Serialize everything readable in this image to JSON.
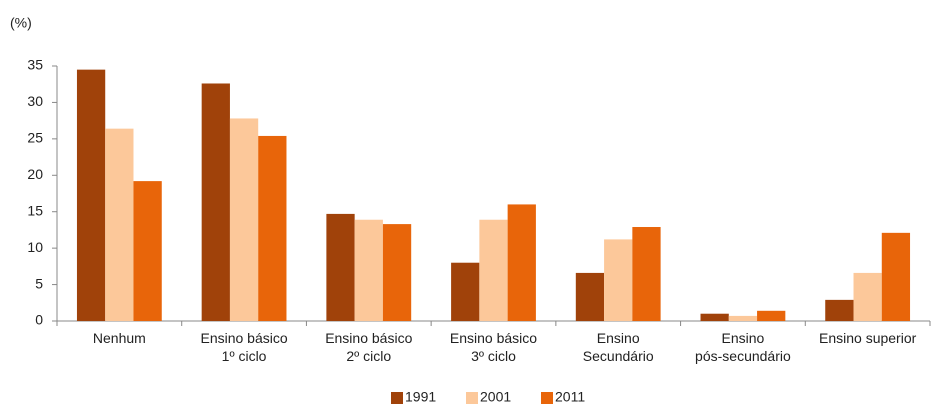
{
  "chart_data": {
    "type": "bar",
    "y_label": "(%)",
    "categories": [
      "Nenhum",
      "Ensino básico\n1º ciclo",
      "Ensino básico\n2º ciclo",
      "Ensino básico\n3º ciclo",
      "Ensino\nSecundário",
      "Ensino\npós-secundário",
      "Ensino superior"
    ],
    "series": [
      {
        "name": "1991",
        "color": "#a0420a",
        "values": [
          34.5,
          32.6,
          14.7,
          8.0,
          6.6,
          1.0,
          2.9
        ]
      },
      {
        "name": "2001",
        "color": "#fcc89a",
        "values": [
          26.4,
          27.8,
          13.9,
          13.9,
          11.2,
          0.7,
          6.6
        ]
      },
      {
        "name": "2011",
        "color": "#e8650a",
        "values": [
          19.2,
          25.4,
          13.3,
          16.0,
          12.9,
          1.4,
          12.1
        ]
      }
    ],
    "ylim": [
      0,
      35
    ],
    "yticks": [
      0,
      5,
      10,
      15,
      20,
      25,
      30,
      35
    ],
    "grid": false,
    "legend": "bottom"
  }
}
